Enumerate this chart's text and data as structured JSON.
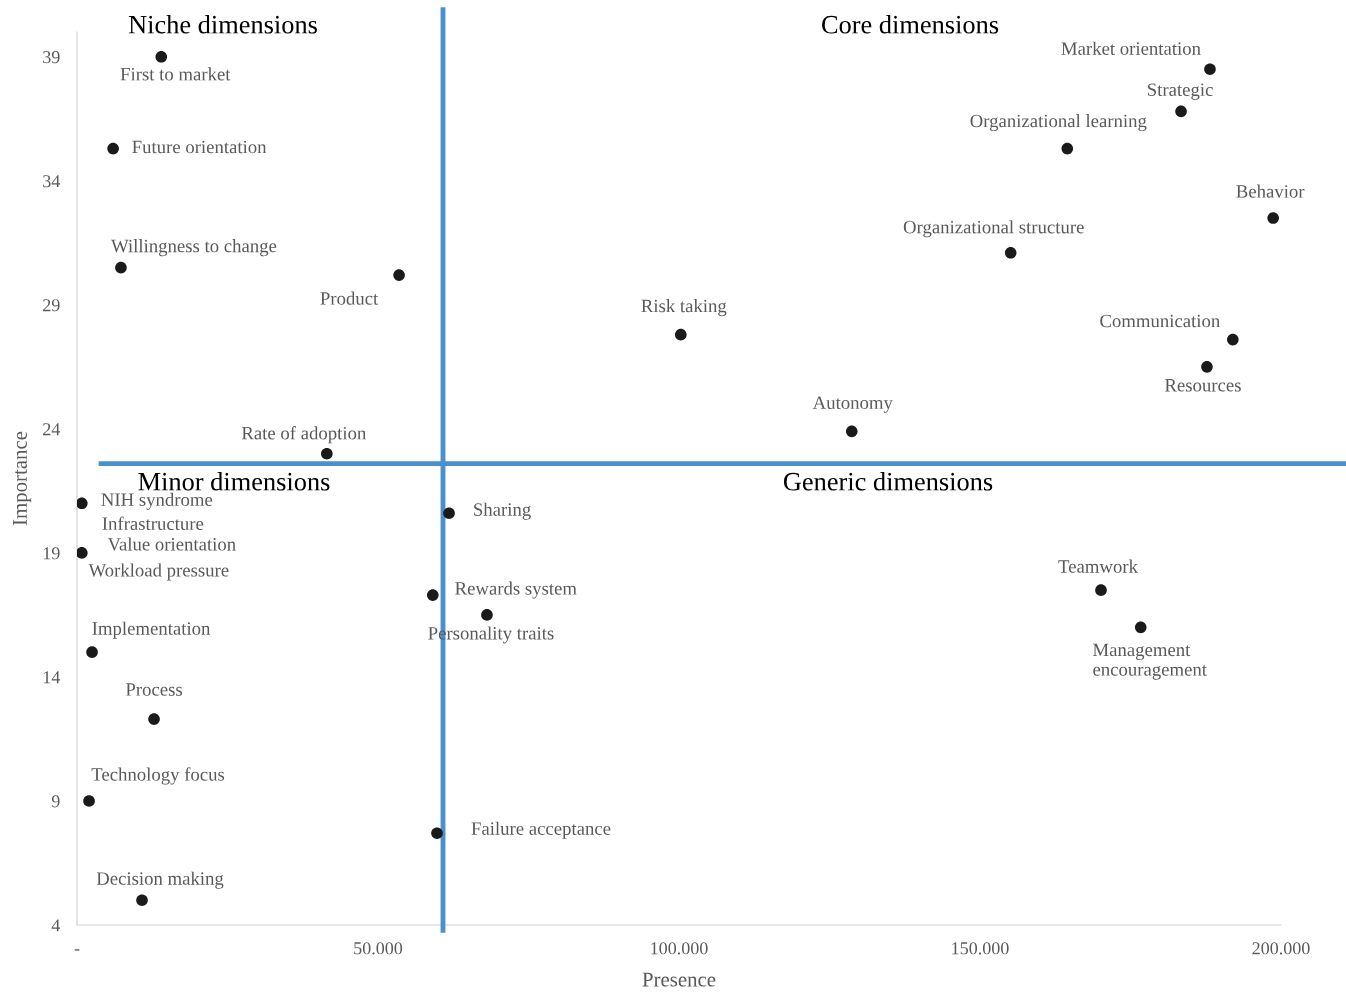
{
  "chart_data": {
    "type": "scatter",
    "xlabel": "Presence",
    "ylabel": "Importance",
    "xlim": [
      0,
      200000
    ],
    "ylim": [
      4,
      40
    ],
    "xticks": [
      {
        "value": 0,
        "label": "-"
      },
      {
        "value": 50000,
        "label": "50.000"
      },
      {
        "value": 100000,
        "label": "100.000"
      },
      {
        "value": 150000,
        "label": "150.000"
      },
      {
        "value": 200000,
        "label": "200.000"
      }
    ],
    "yticks": [
      4,
      9,
      14,
      19,
      24,
      29,
      34,
      39
    ],
    "grid": false,
    "marker": "circle",
    "series": [
      {
        "color": "#1a1a1a",
        "x": [
          14000,
          6000,
          7300,
          53500,
          41500,
          100300,
          128700,
          155100,
          164500,
          183400,
          188200,
          198700,
          192000,
          187700,
          800,
          null,
          800,
          null,
          61800,
          59100,
          68100,
          59800,
          2500,
          12800,
          2000,
          10800,
          170100,
          176700
        ],
        "values": [
          39.0,
          35.3,
          30.5,
          30.2,
          23.0,
          27.8,
          23.9,
          31.1,
          35.3,
          36.8,
          38.5,
          32.5,
          27.6,
          26.5,
          21.0,
          null,
          19.0,
          null,
          20.6,
          17.3,
          16.5,
          7.7,
          15.0,
          12.3,
          9.0,
          5.0,
          17.5,
          16.0
        ]
      }
    ],
    "ref_lines": [
      {
        "axis": "x",
        "value": 60800,
        "color": "#4a90cc"
      },
      {
        "axis": "y",
        "value": 22.6,
        "color": "#4a90cc"
      }
    ],
    "annotations": [
      {
        "text": "First to market",
        "x": 14000,
        "y": 39.0
      },
      {
        "text": "Future orientation",
        "x": 6000,
        "y": 35.3
      },
      {
        "text": "Willingness to change",
        "x": 7300,
        "y": 30.5
      },
      {
        "text": "Product",
        "x": 53500,
        "y": 30.2
      },
      {
        "text": "Rate of adoption",
        "x": 41500,
        "y": 23.0
      },
      {
        "text": "Risk taking",
        "x": 100300,
        "y": 27.8
      },
      {
        "text": "Autonomy",
        "x": 128700,
        "y": 23.9
      },
      {
        "text": "Organizational structure",
        "x": 155100,
        "y": 31.1
      },
      {
        "text": "Organizational learning",
        "x": 164500,
        "y": 35.3
      },
      {
        "text": "Strategic",
        "x": 183400,
        "y": 36.8
      },
      {
        "text": "Market orientation",
        "x": 188200,
        "y": 38.5
      },
      {
        "text": "Behavior",
        "x": 198700,
        "y": 32.5
      },
      {
        "text": "Communication",
        "x": 192000,
        "y": 27.6
      },
      {
        "text": "Resources",
        "x": 187700,
        "y": 26.5
      },
      {
        "text": "NIH syndrome",
        "x": 800,
        "y": 21.0
      },
      {
        "text": "Infrastructure",
        "x": 800,
        "y": 21.0
      },
      {
        "text": "Value orientation",
        "x": 800,
        "y": 19.0
      },
      {
        "text": "Workload pressure",
        "x": 800,
        "y": 19.0
      },
      {
        "text": "Sharing",
        "x": 61800,
        "y": 20.6
      },
      {
        "text": "Rewards system",
        "x": 59100,
        "y": 17.3
      },
      {
        "text": "Personality traits",
        "x": 68100,
        "y": 16.5
      },
      {
        "text": "Failure acceptance",
        "x": 59800,
        "y": 7.7
      },
      {
        "text": "Implementation",
        "x": 2500,
        "y": 15.0
      },
      {
        "text": "Process",
        "x": 12800,
        "y": 12.3
      },
      {
        "text": "Technology focus",
        "x": 2000,
        "y": 9.0
      },
      {
        "text": "Decision making",
        "x": 10800,
        "y": 5.0
      },
      {
        "text": "Teamwork",
        "x": 170100,
        "y": 17.5
      },
      {
        "text": "Management\nencouragement",
        "x": 176700,
        "y": 16.0
      },
      "Niche dimensions",
      "Core dimensions",
      "Minor dimensions",
      "Generic dimensions"
    ]
  }
}
